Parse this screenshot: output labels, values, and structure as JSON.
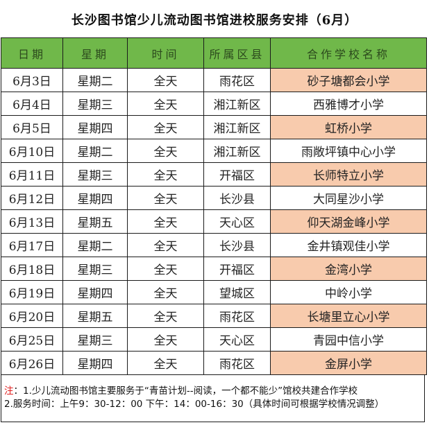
{
  "title": "长沙图书馆少儿流动图书馆进校服务安排（6月）",
  "colors": {
    "header_bg": "#70b84a",
    "highlight_bg": "#f8cbad",
    "note_prefix": "#e02020"
  },
  "table": {
    "headers": [
      "日期",
      "星期",
      "时间",
      "所属区县",
      "合作学校名称"
    ],
    "rows": [
      {
        "date": "6月3日",
        "weekday": "星期二",
        "time": "全天",
        "district": "雨花区",
        "school": "砂子塘都会小学",
        "highlight": true
      },
      {
        "date": "6月4日",
        "weekday": "星期三",
        "time": "全天",
        "district": "湘江新区",
        "school": "西雅博才小学",
        "highlight": false
      },
      {
        "date": "6月5日",
        "weekday": "星期四",
        "time": "全天",
        "district": "湘江新区",
        "school": "虹桥小学",
        "highlight": true
      },
      {
        "date": "6月10日",
        "weekday": "星期二",
        "time": "全天",
        "district": "湘江新区",
        "school": "雨敞坪镇中心小学",
        "highlight": false
      },
      {
        "date": "6月11日",
        "weekday": "星期三",
        "time": "全天",
        "district": "开福区",
        "school": "长师特立小学",
        "highlight": true
      },
      {
        "date": "6月12日",
        "weekday": "星期四",
        "time": "全天",
        "district": "长沙县",
        "school": "大同星沙小学",
        "highlight": false
      },
      {
        "date": "6月13日",
        "weekday": "星期五",
        "time": "全天",
        "district": "天心区",
        "school": "仰天湖金峰小学",
        "highlight": true
      },
      {
        "date": "6月17日",
        "weekday": "星期二",
        "time": "全天",
        "district": "长沙县",
        "school": "金井镇观佳小学",
        "highlight": false
      },
      {
        "date": "6月18日",
        "weekday": "星期三",
        "time": "全天",
        "district": "开福区",
        "school": "金湾小学",
        "highlight": true
      },
      {
        "date": "6月19日",
        "weekday": "星期四",
        "time": "全天",
        "district": "望城区",
        "school": "中岭小学",
        "highlight": false
      },
      {
        "date": "6月20日",
        "weekday": "星期五",
        "time": "全天",
        "district": "雨花区",
        "school": "长塘里立心小学",
        "highlight": true
      },
      {
        "date": "6月25日",
        "weekday": "星期三",
        "time": "全天",
        "district": "天心区",
        "school": "青园中信小学",
        "highlight": false
      },
      {
        "date": "6月26日",
        "weekday": "星期四",
        "time": "全天",
        "district": "雨花区",
        "school": "金屏小学",
        "highlight": true
      }
    ]
  },
  "note": {
    "prefix": "注",
    "line1": "：1.少儿流动图书馆主要服务于“青苗计划--阅读，一个都不能少”馆校共建合作学校",
    "line2": "2.服务时间：上午9：30-12：00 下午：14：00-16：30（具体时间可根据学校情况调整）"
  }
}
